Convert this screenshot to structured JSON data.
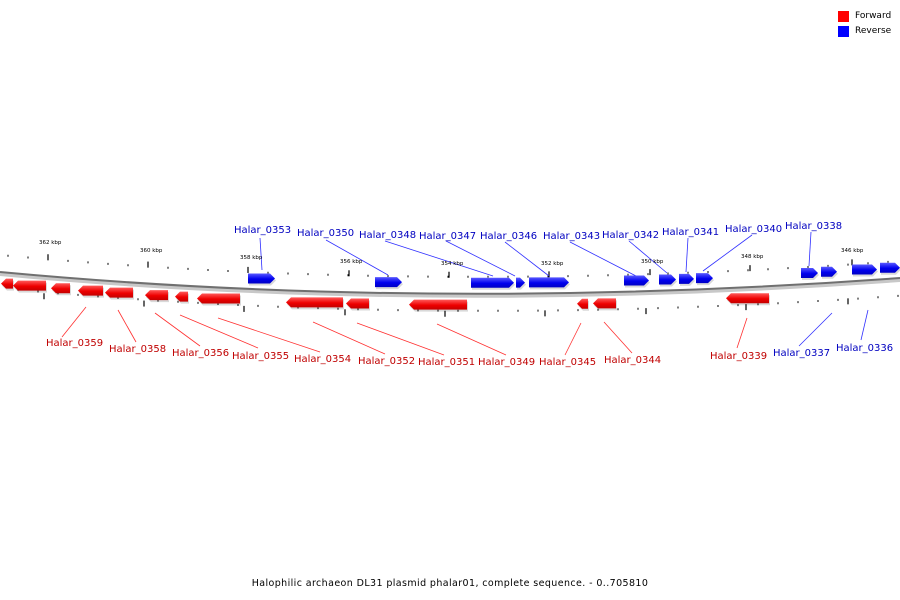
{
  "legend": {
    "forward_label": "Forward",
    "reverse_label": "Reverse",
    "forward_color": "#ff0000",
    "reverse_color": "#0000ff"
  },
  "caption": "Halophilic archaeon DL31 plasmid phalar01, complete sequence. - 0..705810",
  "ticks": [
    "362 kbp",
    "360 kbp",
    "358 kbp",
    "356 kbp",
    "354 kbp",
    "352 kbp",
    "350 kbp",
    "348 kbp",
    "346 kbp"
  ],
  "genes_forward": [
    "Halar_0359",
    "Halar_0358",
    "Halar_0356",
    "Halar_0355",
    "Halar_0354",
    "Halar_0352",
    "Halar_0351",
    "Halar_0349",
    "Halar_0345",
    "Halar_0344",
    "Halar_0339"
  ],
  "genes_reverse": [
    "Halar_0353",
    "Halar_0350",
    "Halar_0348",
    "Halar_0347",
    "Halar_0346",
    "Halar_0343",
    "Halar_0342",
    "Halar_0341",
    "Halar_0340",
    "Halar_0338",
    "Halar_0337",
    "Halar_0336"
  ]
}
